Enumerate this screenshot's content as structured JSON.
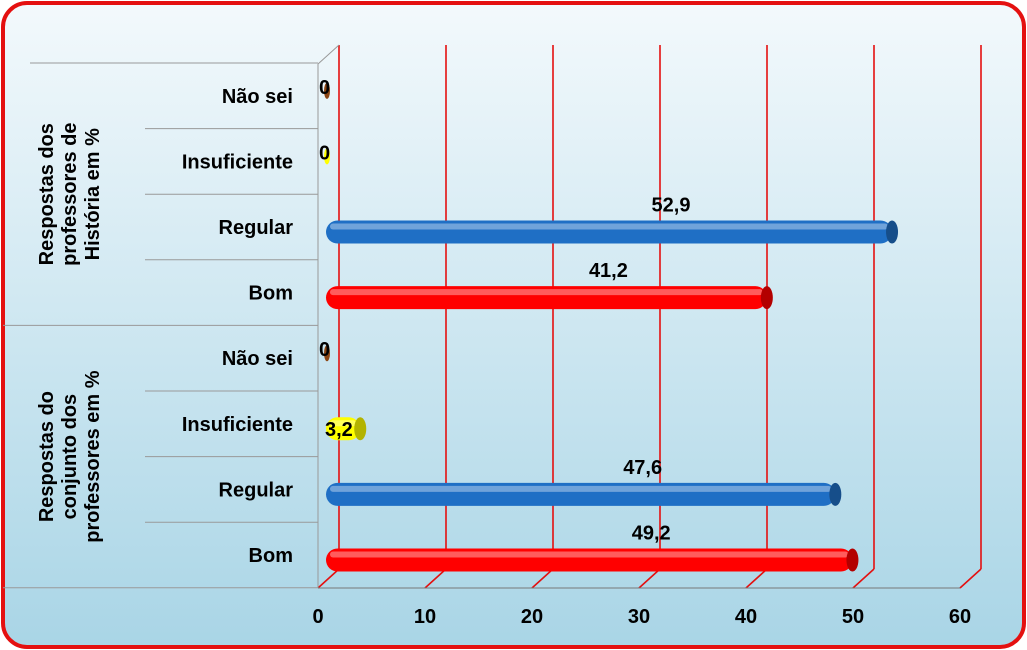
{
  "chart_data": {
    "type": "bar",
    "orientation": "horizontal",
    "xlim": [
      0,
      60
    ],
    "x_ticks": [
      "0",
      "10",
      "20",
      "30",
      "40",
      "50",
      "60"
    ],
    "grid": true,
    "groups": [
      {
        "label": "Respostas dos professores de História em %",
        "categories": [
          "Não sei",
          "Insuficiente",
          "Regular",
          "Bom"
        ],
        "values": [
          0,
          0,
          52.9,
          41.2
        ],
        "value_labels": [
          "0",
          "0",
          "52,9",
          "41,2"
        ]
      },
      {
        "label": "Respostas do conjunto dos professores em %",
        "categories": [
          "Não sei",
          "Insuficiente",
          "Regular",
          "Bom"
        ],
        "values": [
          0,
          3.2,
          47.6,
          49.2
        ],
        "value_labels": [
          "0",
          "3,2",
          "47,6",
          "49,2"
        ]
      }
    ],
    "colors": {
      "Não sei": "#8B4513",
      "Insuficiente": "#FFFF00",
      "Regular": "#1F6FC5",
      "Bom": "#FF0000"
    }
  }
}
